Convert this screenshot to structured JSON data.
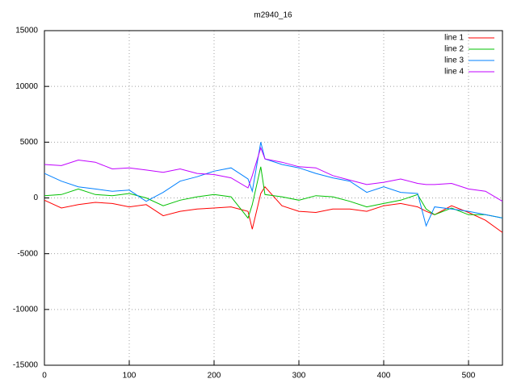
{
  "chart_data": {
    "type": "line",
    "title": "m2940_16",
    "x": [
      0,
      20,
      40,
      60,
      80,
      100,
      120,
      140,
      160,
      180,
      200,
      220,
      240,
      245,
      255,
      260,
      280,
      300,
      320,
      340,
      360,
      380,
      400,
      420,
      440,
      450,
      460,
      480,
      500,
      520,
      540
    ],
    "series": [
      {
        "name": "line 1",
        "color": "#ff0000",
        "values": [
          -200,
          -900,
          -600,
          -400,
          -500,
          -800,
          -600,
          -1600,
          -1200,
          -1000,
          -900,
          -800,
          -1200,
          -2800,
          400,
          1000,
          -700,
          -1200,
          -1300,
          -1000,
          -1000,
          -1200,
          -700,
          -500,
          -800,
          -1200,
          -1500,
          -700,
          -1300,
          -2000,
          -3100
        ]
      },
      {
        "name": "line 2",
        "color": "#00c000",
        "values": [
          200,
          300,
          800,
          300,
          200,
          400,
          0,
          -700,
          -200,
          100,
          300,
          100,
          -1800,
          -600,
          2800,
          300,
          100,
          -200,
          200,
          100,
          -300,
          -800,
          -500,
          -200,
          300,
          -1000,
          -1500,
          -900,
          -1500,
          -1500,
          -1800
        ]
      },
      {
        "name": "line 3",
        "color": "#0080ff",
        "values": [
          2200,
          1500,
          1000,
          800,
          600,
          700,
          -300,
          500,
          1500,
          1900,
          2400,
          2700,
          1700,
          600,
          5000,
          3500,
          3000,
          2700,
          2200,
          1800,
          1500,
          500,
          1000,
          500,
          400,
          -2500,
          -800,
          -1000,
          -1200,
          -1500,
          -1800
        ]
      },
      {
        "name": "line 4",
        "color": "#c000ff",
        "values": [
          3000,
          2900,
          3400,
          3200,
          2600,
          2700,
          2500,
          2300,
          2600,
          2200,
          2100,
          1800,
          900,
          2000,
          4500,
          3500,
          3200,
          2800,
          2700,
          2000,
          1600,
          1200,
          1400,
          1700,
          1300,
          1200,
          1200,
          1300,
          800,
          600,
          -300
        ]
      }
    ],
    "xlim": [
      0,
      540
    ],
    "xticks": [
      0,
      100,
      200,
      300,
      400,
      500
    ],
    "ylim": [
      -15000,
      15000
    ],
    "yticks": [
      -15000,
      -10000,
      -5000,
      0,
      5000,
      10000,
      15000
    ],
    "grid": true,
    "legend": "top-right"
  }
}
